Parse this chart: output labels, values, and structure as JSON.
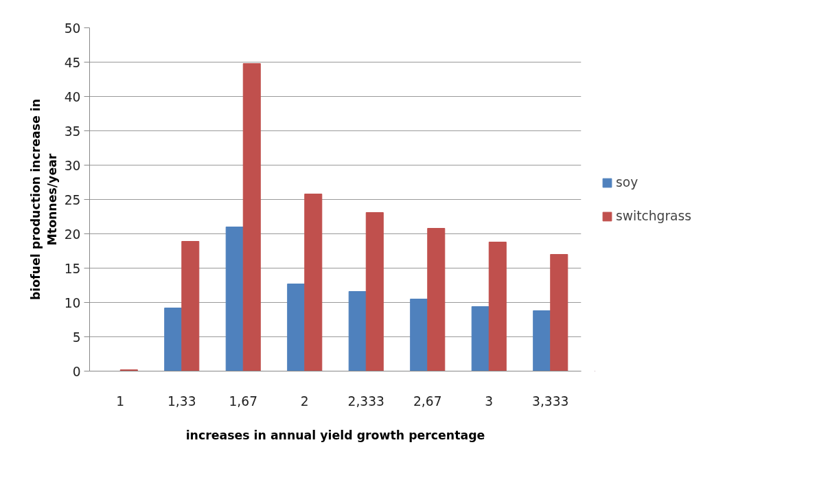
{
  "chart_data": {
    "type": "bar",
    "xlabel": "increases in annual yield growth percentage",
    "ylabel": "biofuel production increase in Mtonnes/year",
    "categories": [
      "1",
      "1,33",
      "1,67",
      "2",
      "2,333",
      "2,67",
      "3",
      "3,333"
    ],
    "series": [
      {
        "name": "soy",
        "color": "#4f81bd",
        "values": [
          0,
          9.2,
          21.0,
          12.7,
          11.6,
          10.5,
          9.4,
          8.8
        ]
      },
      {
        "name": "switchgrass",
        "color": "#c0504d",
        "values": [
          0.2,
          18.9,
          44.8,
          25.8,
          23.1,
          20.8,
          18.8,
          17.0
        ]
      }
    ],
    "ylim": [
      0,
      50
    ],
    "yticks": [
      0,
      5,
      10,
      15,
      20,
      25,
      30,
      35,
      40,
      45,
      50
    ],
    "grid": "y",
    "legend": "right"
  }
}
